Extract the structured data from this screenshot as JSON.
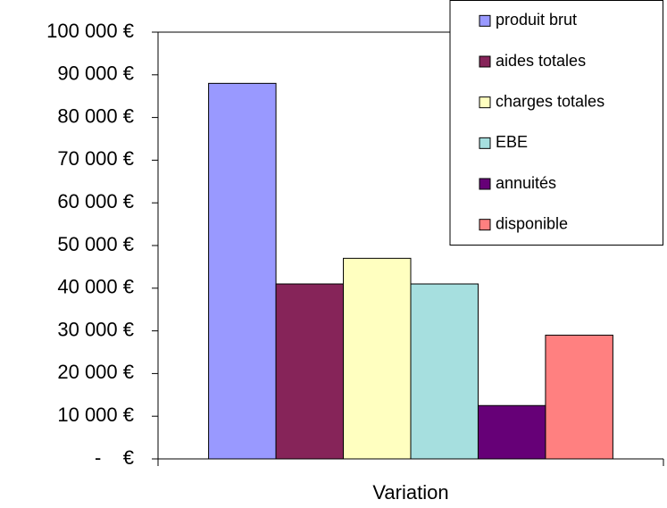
{
  "chart_data": {
    "type": "bar",
    "categories": [
      "Variation"
    ],
    "series": [
      {
        "name": "produit brut",
        "color": "#9999ff",
        "values": [
          88000
        ]
      },
      {
        "name": "aides totales",
        "color": "#862459",
        "values": [
          41000
        ]
      },
      {
        "name": "charges totales",
        "color": "#ffffc0",
        "values": [
          47000
        ]
      },
      {
        "name": "EBE",
        "color": "#a6dfdf",
        "values": [
          41000
        ]
      },
      {
        "name": "annuités",
        "color": "#660077",
        "values": [
          12500
        ]
      },
      {
        "name": "disponible",
        "color": "#ff8080",
        "values": [
          29000
        ]
      }
    ],
    "ylim": [
      0,
      100000
    ],
    "yticks": [
      {
        "value": 0,
        "label": "-    €"
      },
      {
        "value": 10000,
        "label": "10 000 €"
      },
      {
        "value": 20000,
        "label": "20 000 €"
      },
      {
        "value": 30000,
        "label": "30 000 €"
      },
      {
        "value": 40000,
        "label": "40 000 €"
      },
      {
        "value": 50000,
        "label": "50 000 €"
      },
      {
        "value": 60000,
        "label": "60 000 €"
      },
      {
        "value": 70000,
        "label": "70 000 €"
      },
      {
        "value": 80000,
        "label": "80 000 €"
      },
      {
        "value": 90000,
        "label": "90 000 €"
      },
      {
        "value": 100000,
        "label": "100 000 €"
      }
    ],
    "grid": false,
    "legend": "top-right"
  }
}
